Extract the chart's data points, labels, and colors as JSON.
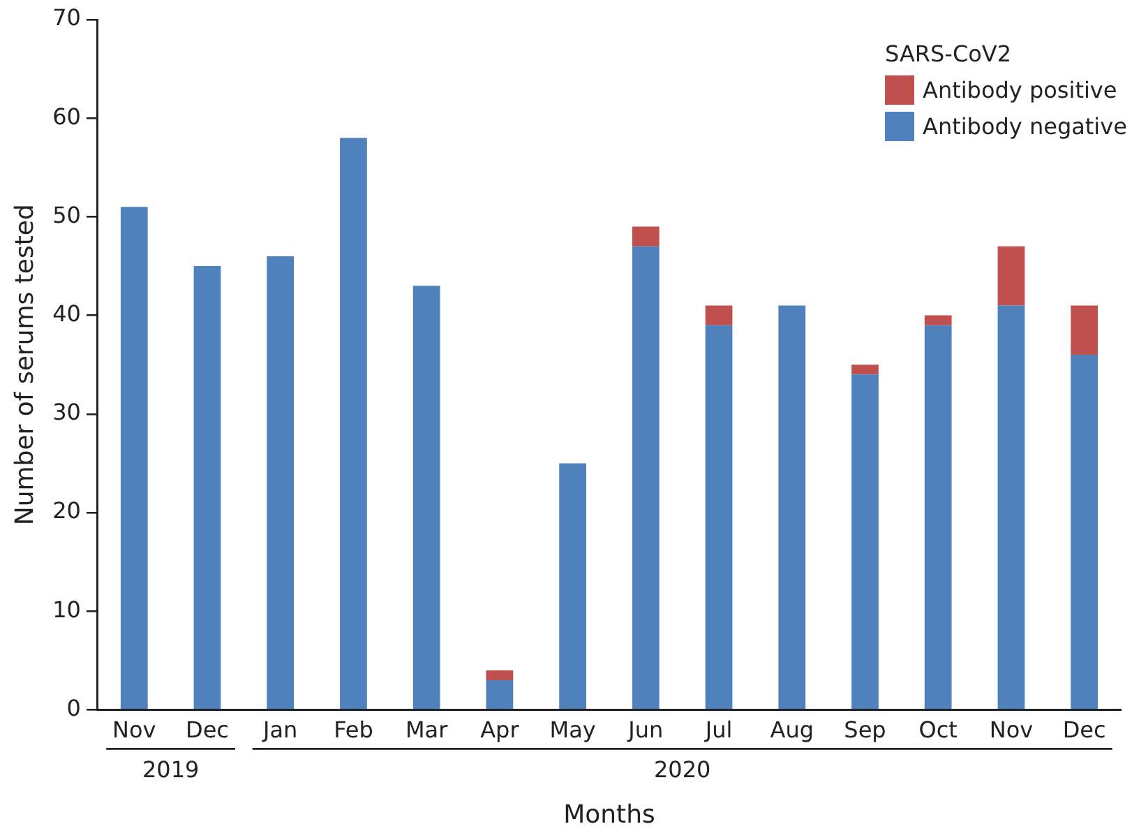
{
  "chart_data": {
    "type": "bar",
    "stacked": true,
    "xlabel": "Months",
    "ylabel": "Number of serums tested",
    "legend_title": "SARS-CoV2",
    "legend": "top right",
    "categories": [
      "Nov",
      "Dec",
      "Jan",
      "Feb",
      "Mar",
      "Apr",
      "May",
      "Jun",
      "Jul",
      "Aug",
      "Sep",
      "Oct",
      "Nov",
      "Dec"
    ],
    "series": [
      {
        "name": "Antibody negative",
        "color": "#4f81bd",
        "values": [
          51,
          45,
          46,
          58,
          43,
          3,
          25,
          47,
          39,
          41,
          34,
          39,
          41,
          36
        ]
      },
      {
        "name": "Antibody positive",
        "color": "#c0504d",
        "values": [
          0,
          0,
          0,
          0,
          0,
          1,
          0,
          2,
          2,
          0,
          1,
          1,
          6,
          5
        ]
      }
    ],
    "ylim": [
      0,
      70
    ],
    "yticks": [
      0,
      10,
      20,
      30,
      40,
      50,
      60,
      70
    ],
    "grid": false,
    "annotations": [
      "2019",
      "2020"
    ]
  }
}
